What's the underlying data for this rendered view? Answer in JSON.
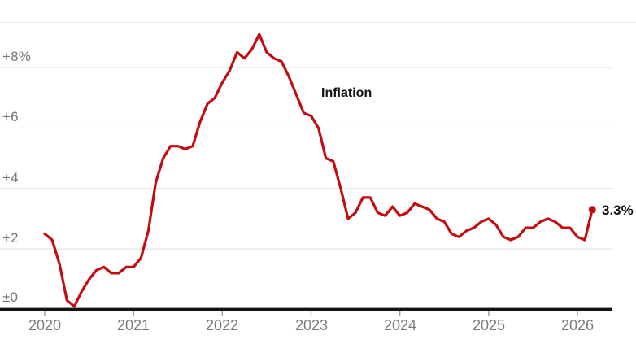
{
  "chart_data": {
    "type": "line",
    "title": "Inflation",
    "description": "Year-over-year inflation rate, monthly, January 2020 through early 2026",
    "x_unit": "month",
    "x_start": "2020-01",
    "x_tick_labels": [
      "2020",
      "2021",
      "2022",
      "2023",
      "2024",
      "2025",
      "2026"
    ],
    "y_tick_labels": [
      "+8%",
      "+6",
      "+4",
      "+2",
      "±0"
    ],
    "y_tick_values": [
      8,
      6,
      4,
      2,
      0
    ],
    "ylim": [
      0,
      9.5
    ],
    "grid": true,
    "legend": "none (inline annotation on line)",
    "line_color": "#c20c10",
    "axis_label_color": "#767676",
    "annotation_color": "#131313",
    "series": [
      {
        "name": "Inflation",
        "values": [
          2.5,
          2.3,
          1.5,
          0.3,
          0.1,
          0.6,
          1.0,
          1.3,
          1.4,
          1.2,
          1.2,
          1.4,
          1.4,
          1.7,
          2.6,
          4.2,
          5.0,
          5.4,
          5.4,
          5.3,
          5.4,
          6.2,
          6.8,
          7.0,
          7.5,
          7.9,
          8.5,
          8.3,
          8.6,
          9.1,
          8.5,
          8.3,
          8.2,
          7.7,
          7.1,
          6.5,
          6.4,
          6.0,
          5.0,
          4.9,
          4.0,
          3.0,
          3.2,
          3.7,
          3.7,
          3.2,
          3.1,
          3.4,
          3.1,
          3.2,
          3.5,
          3.4,
          3.3,
          3.0,
          2.9,
          2.5,
          2.4,
          2.6,
          2.7,
          2.9,
          3.0,
          2.8,
          2.4,
          2.3,
          2.4,
          2.7,
          2.7,
          2.9,
          3.0,
          2.9,
          2.7,
          2.7,
          2.4,
          2.3,
          3.3
        ]
      }
    ],
    "end_point": {
      "label": "3.3%",
      "value": 3.3
    }
  }
}
